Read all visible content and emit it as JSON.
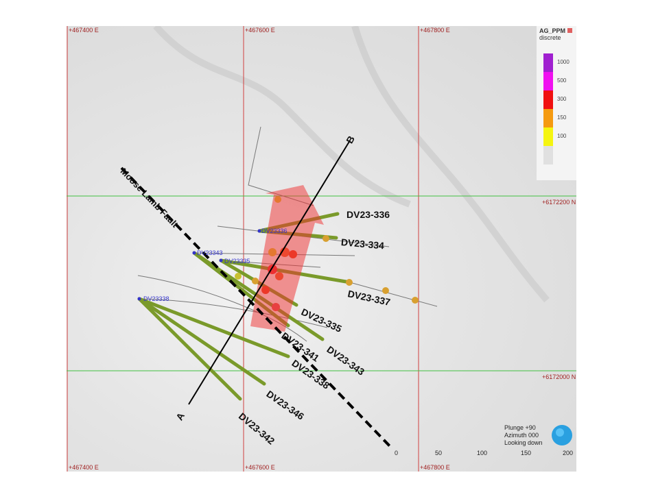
{
  "grid": {
    "eastings": [
      "+467400 E",
      "+467600 E",
      "+467800 E"
    ],
    "northings": [
      "+6172200 N",
      "+6172000 N"
    ],
    "color": "#d04040",
    "north_color": "#40c040"
  },
  "legend": {
    "title": "AG_PPM",
    "subtitle": "discrete",
    "items": [
      {
        "label": "1000",
        "color": "#a020d0"
      },
      {
        "label": "500",
        "color": "#f010f0"
      },
      {
        "label": "300",
        "color": "#f01010"
      },
      {
        "label": "150",
        "color": "#f59a10"
      },
      {
        "label": "100",
        "color": "#f5f510"
      },
      {
        "label": "",
        "color": "#e0e0e0"
      }
    ]
  },
  "fault_label": "Moose Lamb Fault",
  "section": {
    "start": "A",
    "end": "B"
  },
  "collars": [
    "DV23336",
    "DV23343",
    "DV23335",
    "DV23338"
  ],
  "holes": [
    "DV23-336",
    "DV23-334",
    "DV23-337",
    "DV23-335",
    "DV23-343",
    "DV23-341",
    "DV23-338",
    "DV23-346",
    "DV23-342"
  ],
  "orientation": {
    "plunge": "Plunge +90",
    "azimuth": "Azimuth 000",
    "looking": "Looking down"
  },
  "scale_bar": [
    "0",
    "50",
    "100",
    "150",
    "200"
  ]
}
